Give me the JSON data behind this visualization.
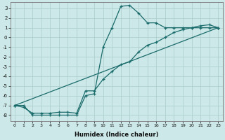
{
  "xlabel": "Humidex (Indice chaleur)",
  "ylabel": "",
  "bg_color": "#cde8e8",
  "line_color": "#1a6b6b",
  "grid_color": "#aacccc",
  "xlim": [
    -0.5,
    23.5
  ],
  "ylim": [
    -8.6,
    3.6
  ],
  "xtick_vals": [
    0,
    1,
    2,
    3,
    4,
    5,
    6,
    7,
    8,
    9,
    10,
    11,
    12,
    13,
    14,
    15,
    16,
    17,
    18,
    19,
    20,
    21,
    22,
    23
  ],
  "xtick_labels": [
    "0",
    "1",
    "2",
    "3",
    "4",
    "5",
    "6",
    "7",
    "8",
    "9",
    "10",
    "11",
    "12",
    "13",
    "14",
    "15",
    "16",
    "17",
    "18",
    "19",
    "20",
    "21",
    "22",
    "23"
  ],
  "ytick_vals": [
    3,
    2,
    1,
    0,
    -1,
    -2,
    -3,
    -4,
    -5,
    -6,
    -7,
    -8
  ],
  "ytick_labels": [
    "3",
    "2",
    "1",
    "0",
    "-1",
    "-2",
    "-3",
    "-4",
    "-5",
    "-6",
    "-7",
    "-8"
  ],
  "line1_x": [
    0,
    1,
    2,
    3,
    4,
    5,
    6,
    7,
    8,
    9,
    10,
    11,
    12,
    13,
    14,
    15,
    16,
    17,
    18,
    19,
    20,
    21,
    22,
    23
  ],
  "line1_y": [
    -7,
    -7,
    -8,
    -8,
    -8,
    -8,
    -8,
    -8,
    -6,
    -5.8,
    -1,
    1,
    3.2,
    3.3,
    2.5,
    1.5,
    1.5,
    1,
    1,
    1,
    1,
    1,
    1,
    1
  ],
  "line2_x": [
    0,
    1,
    2,
    3,
    4,
    5,
    6,
    7,
    8,
    9,
    10,
    11,
    12,
    13,
    14,
    15,
    16,
    17,
    18,
    19,
    20,
    21,
    22,
    23
  ],
  "line2_y": [
    -7,
    -7.2,
    -7.8,
    -7.8,
    -7.8,
    -7.7,
    -7.7,
    -7.8,
    -5.5,
    -5.5,
    -4.3,
    -3.5,
    -2.8,
    -2.5,
    -1.5,
    -0.8,
    -0.5,
    0.0,
    0.5,
    0.8,
    1.0,
    1.2,
    1.3,
    1.0
  ],
  "line3_x": [
    0,
    23
  ],
  "line3_y": [
    -7,
    1.0
  ]
}
